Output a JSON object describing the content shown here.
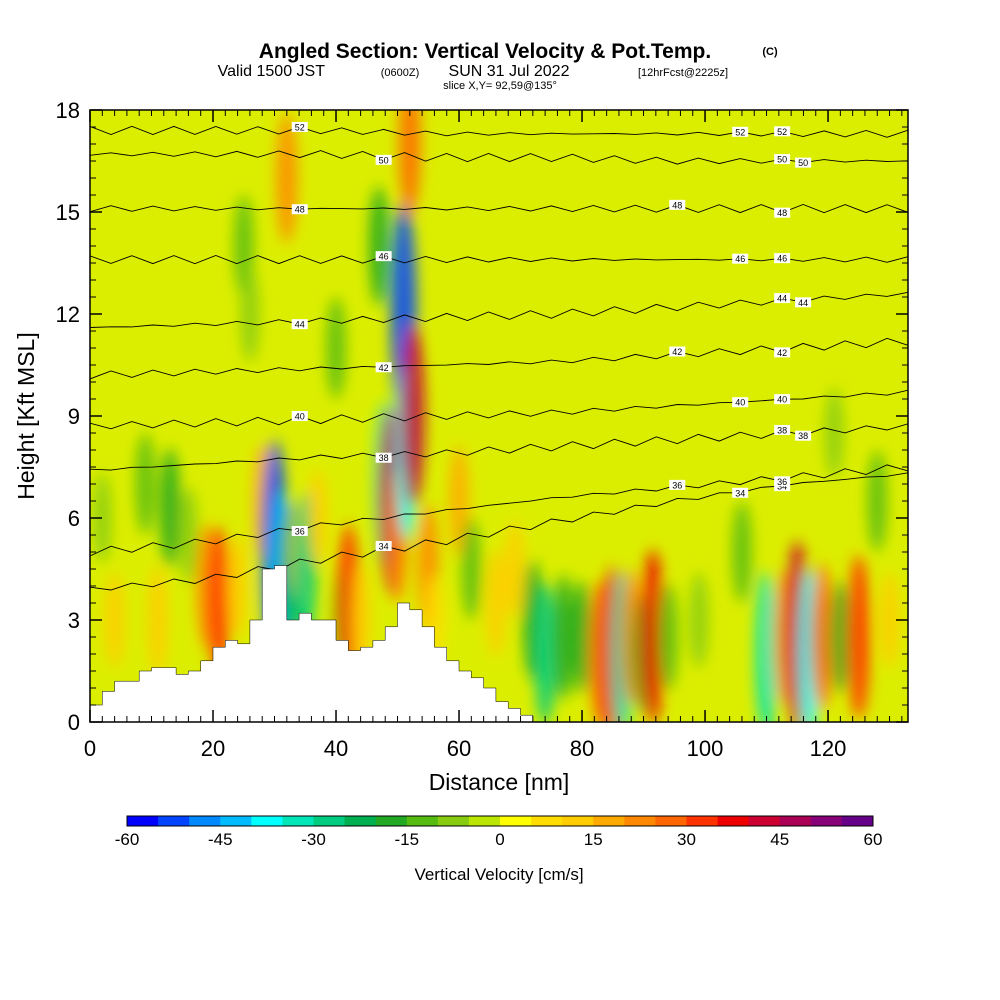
{
  "header": {
    "title": "Angled Section: Vertical Velocity & Pot.Temp.",
    "copyright": "(C)",
    "valid_prefix": "Valid 1500 JST",
    "utc": "(0600Z)",
    "valid_date": "SUN 31 Jul 2022",
    "forecast": "[12hrFcst@2225z]",
    "slice": "slice X,Y= 92,59@135°"
  },
  "chart_data": {
    "type": "heatmap",
    "title": "Angled Section: Vertical Velocity & Pot.Temp.",
    "xlabel": "Distance [nm]",
    "ylabel": "Height [Kft MSL]",
    "xlim": [
      0,
      133
    ],
    "ylim": [
      0,
      18
    ],
    "xticks": [
      0,
      20,
      40,
      60,
      80,
      100,
      120
    ],
    "yticks": [
      0,
      3,
      6,
      9,
      12,
      15,
      18
    ],
    "grid": false,
    "colorbar": {
      "label": "Vertical Velocity [cm/s]",
      "ticks": [
        -60,
        -45,
        -30,
        -15,
        0,
        15,
        30,
        45,
        60
      ],
      "range": [
        -60,
        60
      ],
      "colors": [
        "#0000ff",
        "#0044ff",
        "#0088ff",
        "#00bbff",
        "#00ffff",
        "#00e6b8",
        "#00cc80",
        "#00b050",
        "#22a822",
        "#55bb11",
        "#88cc11",
        "#bbe600",
        "#ffff00",
        "#ffdd00",
        "#ffcc00",
        "#ffaa00",
        "#ff8800",
        "#ff6600",
        "#ff3300",
        "#ee0000",
        "#cc0033",
        "#aa0055",
        "#880077",
        "#660088"
      ]
    },
    "vertical_velocity_cells": [
      {
        "x": 2,
        "y": 6.0,
        "w": -8
      },
      {
        "x": 4,
        "y": 3.0,
        "w": 10
      },
      {
        "x": 9,
        "y": 7.0,
        "w": -12
      },
      {
        "x": 11,
        "y": 3.0,
        "w": 14
      },
      {
        "x": 13,
        "y": 6.3,
        "w": -18
      },
      {
        "x": 16,
        "y": 5.5,
        "w": -10
      },
      {
        "x": 19,
        "y": 4.0,
        "w": 20
      },
      {
        "x": 21,
        "y": 3.5,
        "w": 30
      },
      {
        "x": 24,
        "y": 4.0,
        "w": 12
      },
      {
        "x": 25,
        "y": 14.0,
        "w": -12
      },
      {
        "x": 26,
        "y": 12.0,
        "w": -10
      },
      {
        "x": 28,
        "y": 6.5,
        "w": 16
      },
      {
        "x": 30,
        "y": 5.0,
        "w": -55
      },
      {
        "x": 31,
        "y": 4.0,
        "w": -44
      },
      {
        "x": 32,
        "y": 16.0,
        "w": 22
      },
      {
        "x": 32.5,
        "y": 4.5,
        "w": -22
      },
      {
        "x": 34,
        "y": 5.0,
        "w": 12
      },
      {
        "x": 35,
        "y": 4.5,
        "w": -30
      },
      {
        "x": 37,
        "y": 6.0,
        "w": 10
      },
      {
        "x": 40,
        "y": 11.0,
        "w": -12
      },
      {
        "x": 41,
        "y": 3.0,
        "w": -12
      },
      {
        "x": 42,
        "y": 3.5,
        "w": 32
      },
      {
        "x": 44,
        "y": 3.0,
        "w": 14
      },
      {
        "x": 47,
        "y": 14.0,
        "w": -18
      },
      {
        "x": 48,
        "y": 7.0,
        "w": -34
      },
      {
        "x": 49,
        "y": 6.5,
        "w": 42
      },
      {
        "x": 50,
        "y": 5.5,
        "w": 24
      },
      {
        "x": 51,
        "y": 12.0,
        "w": -54
      },
      {
        "x": 51.5,
        "y": 8.0,
        "w": -40
      },
      {
        "x": 52.5,
        "y": 9.0,
        "w": 40
      },
      {
        "x": 52,
        "y": 17.0,
        "w": 26
      },
      {
        "x": 55,
        "y": 4.5,
        "w": 22
      },
      {
        "x": 56,
        "y": 3.0,
        "w": 8
      },
      {
        "x": 60,
        "y": 6.5,
        "w": 15
      },
      {
        "x": 62,
        "y": 4.5,
        "w": -12
      },
      {
        "x": 66,
        "y": 3.5,
        "w": 14
      },
      {
        "x": 69,
        "y": 4.5,
        "w": 10
      },
      {
        "x": 72,
        "y": 3.0,
        "w": -18
      },
      {
        "x": 74,
        "y": 2.0,
        "w": -26
      },
      {
        "x": 77,
        "y": 2.5,
        "w": -20
      },
      {
        "x": 80,
        "y": 2.5,
        "w": -16
      },
      {
        "x": 83,
        "y": 2.0,
        "w": 28
      },
      {
        "x": 85,
        "y": 2.0,
        "w": 38
      },
      {
        "x": 86.5,
        "y": 2.0,
        "w": -34
      },
      {
        "x": 88,
        "y": 2.5,
        "w": 24
      },
      {
        "x": 90,
        "y": 2.0,
        "w": -18
      },
      {
        "x": 91.5,
        "y": 2.5,
        "w": 38
      },
      {
        "x": 94,
        "y": 2.5,
        "w": -14
      },
      {
        "x": 99,
        "y": 3.0,
        "w": -10
      },
      {
        "x": 106,
        "y": 5.0,
        "w": -12
      },
      {
        "x": 110,
        "y": 2.0,
        "w": -34
      },
      {
        "x": 113,
        "y": 2.5,
        "w": 24
      },
      {
        "x": 115,
        "y": 2.5,
        "w": 44
      },
      {
        "x": 117,
        "y": 2.0,
        "w": -36
      },
      {
        "x": 119,
        "y": 2.5,
        "w": 28
      },
      {
        "x": 122,
        "y": 2.5,
        "w": -16
      },
      {
        "x": 125,
        "y": 2.5,
        "w": 34
      },
      {
        "x": 121,
        "y": 8.5,
        "w": -8
      },
      {
        "x": 128,
        "y": 6.5,
        "w": -12
      },
      {
        "x": 130,
        "y": 3.0,
        "w": 10
      }
    ],
    "potential_temperature_contours": [
      {
        "level": 34,
        "y": [
          3.9,
          4.2,
          4.8,
          5.3,
          5.9,
          6.5,
          7.0,
          7.3
        ]
      },
      {
        "level": 36,
        "y": [
          5.0,
          5.3,
          5.8,
          6.2,
          6.6,
          6.9,
          7.2,
          7.5
        ]
      },
      {
        "level": 38,
        "y": [
          7.4,
          7.6,
          7.8,
          7.9,
          8.1,
          8.3,
          8.5,
          8.7
        ]
      },
      {
        "level": 40,
        "y": [
          8.7,
          8.8,
          8.9,
          9.0,
          9.1,
          9.3,
          9.5,
          9.7
        ]
      },
      {
        "level": 42,
        "y": [
          10.2,
          10.3,
          10.4,
          10.5,
          10.6,
          10.8,
          11.0,
          11.2
        ]
      },
      {
        "level": 44,
        "y": [
          11.6,
          11.7,
          11.8,
          11.9,
          12.0,
          12.2,
          12.4,
          12.6
        ]
      },
      {
        "level": 46,
        "y": [
          13.6,
          13.6,
          13.6,
          13.6,
          13.6,
          13.6,
          13.6,
          13.6
        ]
      },
      {
        "level": 48,
        "y": [
          15.1,
          15.1,
          15.1,
          15.1,
          15.1,
          15.1,
          15.1,
          15.1
        ]
      },
      {
        "level": 50,
        "y": [
          16.7,
          16.7,
          16.7,
          16.6,
          16.6,
          16.5,
          16.5,
          16.5
        ]
      },
      {
        "level": 52,
        "y": [
          17.4,
          17.4,
          17.4,
          17.3,
          17.3,
          17.3,
          17.3,
          17.3
        ]
      }
    ],
    "terrain_profile": [
      [
        0,
        0.5
      ],
      [
        2,
        0.9
      ],
      [
        4,
        1.2
      ],
      [
        8,
        1.5
      ],
      [
        10,
        1.6
      ],
      [
        14,
        1.4
      ],
      [
        16,
        1.5
      ],
      [
        18,
        1.8
      ],
      [
        20,
        2.2
      ],
      [
        22,
        2.4
      ],
      [
        24,
        2.3
      ],
      [
        26,
        3.0
      ],
      [
        28,
        4.5
      ],
      [
        30,
        4.6
      ],
      [
        32,
        3.0
      ],
      [
        34,
        3.2
      ],
      [
        36,
        3.0
      ],
      [
        40,
        2.4
      ],
      [
        42,
        2.1
      ],
      [
        44,
        2.2
      ],
      [
        46,
        2.4
      ],
      [
        48,
        2.8
      ],
      [
        50,
        3.5
      ],
      [
        52,
        3.3
      ],
      [
        54,
        2.8
      ],
      [
        56,
        2.2
      ],
      [
        58,
        1.8
      ],
      [
        60,
        1.5
      ],
      [
        62,
        1.3
      ],
      [
        64,
        1.0
      ],
      [
        66,
        0.6
      ],
      [
        68,
        0.4
      ],
      [
        70,
        0.2
      ],
      [
        72,
        0
      ]
    ]
  }
}
